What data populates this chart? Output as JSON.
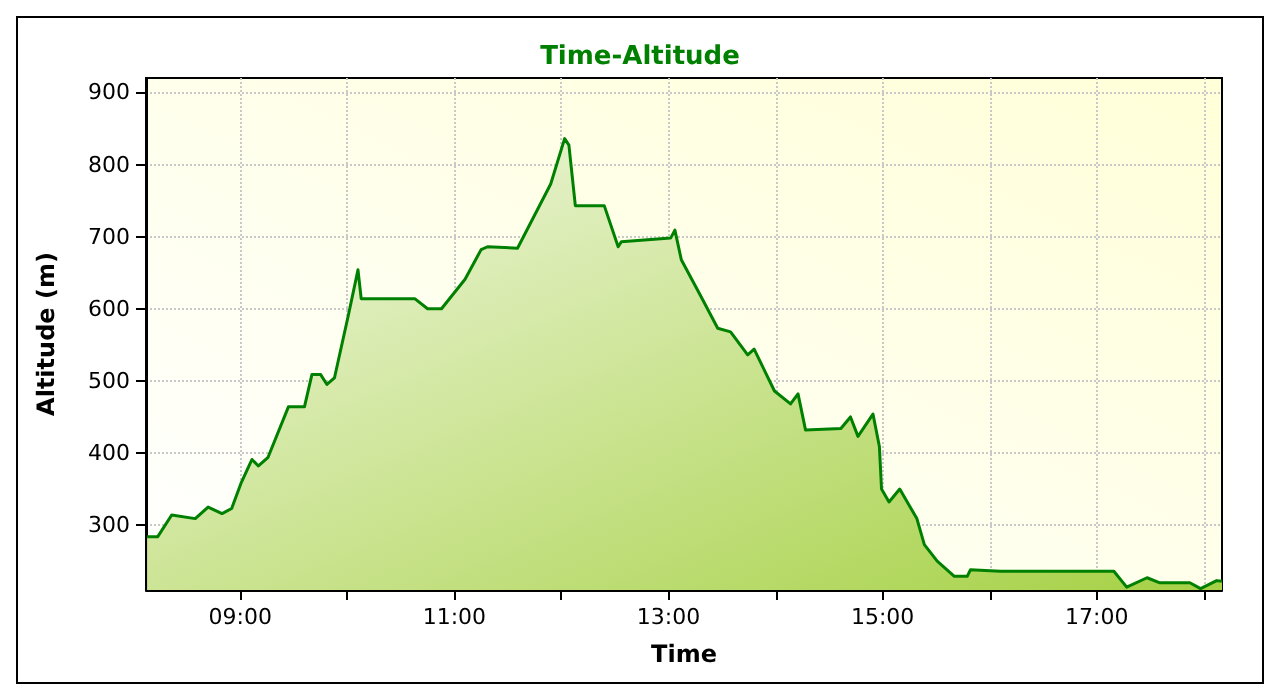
{
  "chart_data": {
    "type": "area",
    "title": "Time-Altitude",
    "xlabel": "Time",
    "ylabel": "Altitude (m)",
    "x": [
      8.13,
      8.23,
      8.36,
      8.58,
      8.7,
      8.83,
      8.92,
      9.01,
      9.11,
      9.17,
      9.26,
      9.45,
      9.6,
      9.67,
      9.75,
      9.81,
      9.88,
      10.01,
      10.1,
      10.13,
      10.26,
      10.63,
      10.75,
      10.88,
      11.1,
      11.25,
      11.31,
      11.59,
      11.9,
      12.03,
      12.07,
      12.13,
      12.4,
      12.53,
      12.56,
      13.02,
      13.06,
      13.12,
      13.3,
      13.46,
      13.58,
      13.74,
      13.8,
      13.99,
      14.14,
      14.21,
      14.28,
      14.61,
      14.7,
      14.77,
      14.91,
      14.97,
      14.99,
      15.06,
      15.16,
      15.32,
      15.39,
      15.51,
      15.67,
      15.79,
      15.82,
      16.1,
      17.16,
      17.28,
      17.47,
      17.59,
      17.87,
      17.97,
      18.12,
      18.17
    ],
    "series": [
      {
        "color": "#008000",
        "values": [
          284,
          284,
          314,
          309,
          325,
          316,
          323,
          359,
          391,
          382,
          394,
          464,
          464,
          509,
          509,
          495,
          504,
          591,
          654,
          614,
          614,
          614,
          600,
          600,
          641,
          682,
          686,
          684,
          773,
          836,
          827,
          743,
          743,
          686,
          693,
          698,
          709,
          668,
          618,
          573,
          568,
          536,
          544,
          486,
          468,
          482,
          432,
          434,
          450,
          423,
          454,
          409,
          350,
          332,
          350,
          309,
          273,
          250,
          229,
          229,
          238,
          236,
          236,
          214,
          227,
          220,
          220,
          212,
          223,
          222
        ]
      }
    ],
    "xlim": [
      8.12,
      18.17
    ],
    "xticks": [
      {
        "value": 9,
        "label": "09:00"
      },
      {
        "value": 10,
        "label": null
      },
      {
        "value": 11,
        "label": "11:00"
      },
      {
        "value": 12,
        "label": null
      },
      {
        "value": 13,
        "label": "13:00"
      },
      {
        "value": 14,
        "label": null
      },
      {
        "value": 15,
        "label": "15:00"
      },
      {
        "value": 16,
        "label": null
      },
      {
        "value": 17,
        "label": "17:00"
      },
      {
        "value": 18,
        "label": null
      }
    ],
    "ylim": [
      210,
      920
    ],
    "yticks": [
      300,
      400,
      500,
      600,
      700,
      800,
      900
    ],
    "grid": true,
    "marker": "none",
    "line_style": "solid"
  }
}
